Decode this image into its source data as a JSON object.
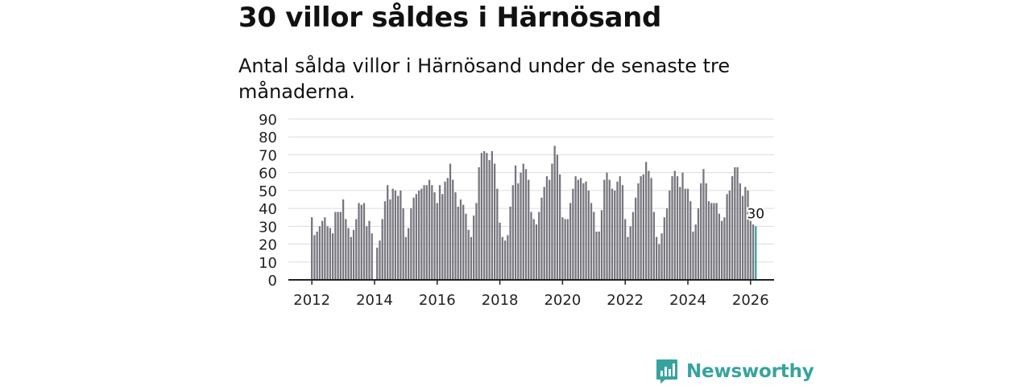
{
  "header": {
    "title": "30 villor såldes i Härnösand",
    "subtitle": "Antal sålda villor i Härnösand under de senaste tre månaderna."
  },
  "brand": {
    "name": "Newsworthy",
    "logo_icon": "newsworthy-bar-chart-icon"
  },
  "chart_data": {
    "type": "bar",
    "title": "30 villor såldes i Härnösand",
    "subtitle": "Antal sålda villor i Härnösand under de senaste tre månaderna.",
    "xlabel": "",
    "ylabel": "",
    "ylim": [
      0,
      90
    ],
    "xlim": [
      2011.25,
      2026.75
    ],
    "yticks": [
      0,
      10,
      20,
      30,
      40,
      50,
      60,
      70,
      80,
      90
    ],
    "xticks": [
      2012,
      2014,
      2016,
      2018,
      2020,
      2022,
      2024,
      2026
    ],
    "x_start": 2012.0,
    "x_step": 0.08333,
    "grid": true,
    "legend": "none",
    "bar_color": "#77767e",
    "highlight_color": "#37a39e",
    "highlight_label": "30",
    "values": [
      35,
      25,
      27,
      30,
      33,
      35,
      30,
      29,
      26,
      38,
      38,
      38,
      45,
      34,
      29,
      24,
      28,
      34,
      43,
      42,
      43,
      30,
      33,
      26,
      0,
      18,
      22,
      34,
      44,
      53,
      45,
      51,
      50,
      47,
      50,
      40,
      24,
      29,
      40,
      46,
      48,
      50,
      51,
      53,
      53,
      56,
      53,
      49,
      43,
      53,
      48,
      55,
      57,
      65,
      56,
      49,
      41,
      45,
      42,
      37,
      28,
      24,
      36,
      43,
      63,
      71,
      72,
      71,
      67,
      72,
      65,
      51,
      32,
      24,
      22,
      25,
      41,
      53,
      64,
      54,
      60,
      65,
      62,
      56,
      38,
      34,
      31,
      38,
      46,
      52,
      58,
      56,
      65,
      75,
      70,
      59,
      35,
      34,
      34,
      43,
      51,
      58,
      56,
      57,
      54,
      55,
      50,
      43,
      38,
      27,
      27,
      39,
      56,
      60,
      56,
      51,
      50,
      55,
      58,
      53,
      34,
      24,
      30,
      38,
      46,
      54,
      58,
      59,
      66,
      61,
      57,
      38,
      24,
      20,
      26,
      35,
      40,
      50,
      58,
      61,
      58,
      52,
      60,
      51,
      51,
      44,
      27,
      31,
      40,
      54,
      62,
      54,
      44,
      43,
      43,
      43,
      37,
      33,
      35,
      48,
      50,
      58,
      63,
      63,
      54,
      47,
      52,
      50,
      33,
      31,
      30
    ]
  }
}
